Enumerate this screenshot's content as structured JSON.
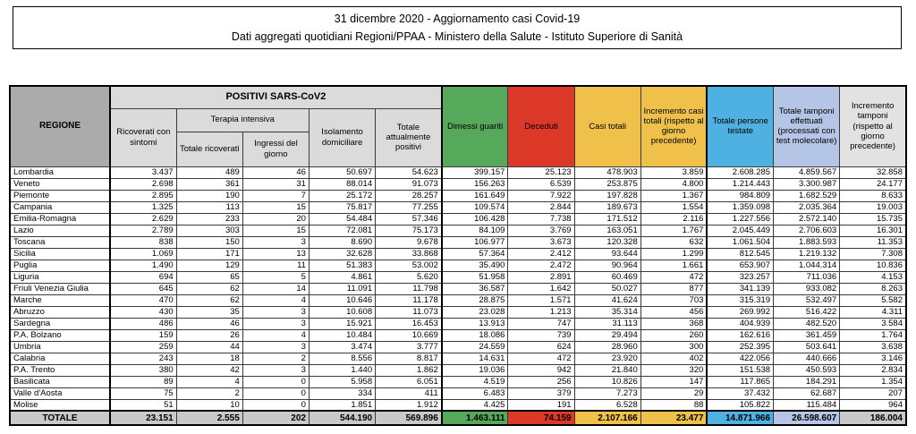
{
  "header": {
    "title": "31 dicembre 2020 - Aggiornamento casi Covid-19",
    "subtitle": "Dati aggregati quotidiani Regioni/PPAA - Ministero della Salute - Istituto Superiore di Sanità"
  },
  "colors": {
    "green": "#56A85A",
    "red": "#DC3828",
    "yellow": "#EFC14B",
    "blue": "#4FB0E2",
    "periwinkle": "#B5C5E6",
    "header_gray": "#DBDBDB",
    "regione_gray": "#ABABAB",
    "total_gray": "#C9C9C9",
    "incremento_gray": "#E2E2E2"
  },
  "table": {
    "region_header": "REGIONE",
    "group_positivi": "POSITIVI SARS-CoV2",
    "group_terapia": "Terapia intensiva",
    "columns": [
      "Ricoverati con sintomi",
      "Totale ricoverati",
      "Ingressi del giorno",
      "Isolamento domiciliare",
      "Totale attualmente positivi",
      "Dimessi guariti",
      "Deceduti",
      "Casi totali",
      "Incremento casi totali (rispetto al giorno precedente)",
      "Totale persone testate",
      "Totale tamponi effettuati (processati con test molecolare)",
      "Incremento tamponi (rispetto al giorno precedente)"
    ],
    "rows": [
      {
        "region": "Lombardia",
        "values": [
          "3.437",
          "489",
          "46",
          "50.697",
          "54.623",
          "399.157",
          "25.123",
          "478.903",
          "3.859",
          "2.608.285",
          "4.859.567",
          "32.858"
        ]
      },
      {
        "region": "Veneto",
        "values": [
          "2.698",
          "361",
          "31",
          "88.014",
          "91.073",
          "156.263",
          "6.539",
          "253.875",
          "4.800",
          "1.214.443",
          "3.300.987",
          "24.177"
        ]
      },
      {
        "region": "Piemonte",
        "values": [
          "2.895",
          "190",
          "7",
          "25.172",
          "28.257",
          "161.649",
          "7.922",
          "197.828",
          "1.367",
          "984.809",
          "1.682.529",
          "8.633"
        ]
      },
      {
        "region": "Campania",
        "values": [
          "1.325",
          "113",
          "15",
          "75.817",
          "77.255",
          "109.574",
          "2.844",
          "189.673",
          "1.554",
          "1.359.098",
          "2.035.364",
          "19.003"
        ]
      },
      {
        "region": "Emilia-Romagna",
        "values": [
          "2.629",
          "233",
          "20",
          "54.484",
          "57.346",
          "106.428",
          "7.738",
          "171.512",
          "2.116",
          "1.227.556",
          "2.572.140",
          "15.735"
        ]
      },
      {
        "region": "Lazio",
        "values": [
          "2.789",
          "303",
          "15",
          "72.081",
          "75.173",
          "84.109",
          "3.769",
          "163.051",
          "1.767",
          "2.045.449",
          "2.706.603",
          "16.301"
        ]
      },
      {
        "region": "Toscana",
        "values": [
          "838",
          "150",
          "3",
          "8.690",
          "9.678",
          "106.977",
          "3.673",
          "120.328",
          "632",
          "1.061.504",
          "1.883.593",
          "11.353"
        ]
      },
      {
        "region": "Sicilia",
        "values": [
          "1.069",
          "171",
          "13",
          "32.628",
          "33.868",
          "57.364",
          "2.412",
          "93.644",
          "1.299",
          "812.545",
          "1.219.132",
          "7.308"
        ]
      },
      {
        "region": "Puglia",
        "values": [
          "1.490",
          "129",
          "11",
          "51.383",
          "53.002",
          "35.490",
          "2.472",
          "90.964",
          "1.661",
          "653.907",
          "1.044.314",
          "10.836"
        ]
      },
      {
        "region": "Liguria",
        "values": [
          "694",
          "65",
          "5",
          "4.861",
          "5.620",
          "51.958",
          "2.891",
          "60.469",
          "472",
          "323.257",
          "711.036",
          "4.153"
        ]
      },
      {
        "region": "Friuli Venezia Giulia",
        "values": [
          "645",
          "62",
          "14",
          "11.091",
          "11.798",
          "36.587",
          "1.642",
          "50.027",
          "877",
          "341.139",
          "933.082",
          "8.263"
        ]
      },
      {
        "region": "Marche",
        "values": [
          "470",
          "62",
          "4",
          "10.646",
          "11.178",
          "28.875",
          "1.571",
          "41.624",
          "703",
          "315.319",
          "532.497",
          "5.582"
        ]
      },
      {
        "region": "Abruzzo",
        "values": [
          "430",
          "35",
          "3",
          "10.608",
          "11.073",
          "23.028",
          "1.213",
          "35.314",
          "456",
          "269.992",
          "516.422",
          "4.311"
        ]
      },
      {
        "region": "Sardegna",
        "values": [
          "486",
          "46",
          "3",
          "15.921",
          "16.453",
          "13.913",
          "747",
          "31.113",
          "368",
          "404.939",
          "482.520",
          "3.584"
        ]
      },
      {
        "region": "P.A. Bolzano",
        "values": [
          "159",
          "26",
          "4",
          "10.484",
          "10.669",
          "18.086",
          "739",
          "29.494",
          "260",
          "162.616",
          "361.459",
          "1.764"
        ]
      },
      {
        "region": "Umbria",
        "values": [
          "259",
          "44",
          "3",
          "3.474",
          "3.777",
          "24.559",
          "624",
          "28.960",
          "300",
          "252.395",
          "503.641",
          "3.638"
        ]
      },
      {
        "region": "Calabria",
        "values": [
          "243",
          "18",
          "2",
          "8.556",
          "8.817",
          "14.631",
          "472",
          "23.920",
          "402",
          "422.056",
          "440.666",
          "3.146"
        ]
      },
      {
        "region": "P.A. Trento",
        "values": [
          "380",
          "42",
          "3",
          "1.440",
          "1.862",
          "19.036",
          "942",
          "21.840",
          "320",
          "151.538",
          "450.593",
          "2.834"
        ]
      },
      {
        "region": "Basilicata",
        "values": [
          "89",
          "4",
          "0",
          "5.958",
          "6.051",
          "4.519",
          "256",
          "10.826",
          "147",
          "117.865",
          "184.291",
          "1.354"
        ]
      },
      {
        "region": "Valle d'Aosta",
        "values": [
          "75",
          "2",
          "0",
          "334",
          "411",
          "6.483",
          "379",
          "7.273",
          "29",
          "37.432",
          "62.687",
          "207"
        ]
      },
      {
        "region": "Molise",
        "values": [
          "51",
          "10",
          "0",
          "1.851",
          "1.912",
          "4.425",
          "191",
          "6.528",
          "88",
          "105.822",
          "115.484",
          "964"
        ]
      }
    ],
    "total_row": {
      "label": "TOTALE",
      "values": [
        "23.151",
        "2.555",
        "202",
        "544.190",
        "569.896",
        "1.463.111",
        "74.159",
        "2.107.166",
        "23.477",
        "14.871.966",
        "26.598.607",
        "186.004"
      ]
    }
  },
  "chart_data": {
    "type": "table",
    "title": "31 dicembre 2020 - Aggiornamento casi Covid-19",
    "columns": [
      "REGIONE",
      "Ricoverati con sintomi",
      "Totale ricoverati (terapia intensiva)",
      "Ingressi del giorno (terapia intensiva)",
      "Isolamento domiciliare",
      "Totale attualmente positivi",
      "Dimessi guariti",
      "Deceduti",
      "Casi totali",
      "Incremento casi totali",
      "Totale persone testate",
      "Totale tamponi effettuati",
      "Incremento tamponi"
    ],
    "rows": [
      [
        "Lombardia",
        3437,
        489,
        46,
        50697,
        54623,
        399157,
        25123,
        478903,
        3859,
        2608285,
        4859567,
        32858
      ],
      [
        "Veneto",
        2698,
        361,
        31,
        88014,
        91073,
        156263,
        6539,
        253875,
        4800,
        1214443,
        3300987,
        24177
      ],
      [
        "Piemonte",
        2895,
        190,
        7,
        25172,
        28257,
        161649,
        7922,
        197828,
        1367,
        984809,
        1682529,
        8633
      ],
      [
        "Campania",
        1325,
        113,
        15,
        75817,
        77255,
        109574,
        2844,
        189673,
        1554,
        1359098,
        2035364,
        19003
      ],
      [
        "Emilia-Romagna",
        2629,
        233,
        20,
        54484,
        57346,
        106428,
        7738,
        171512,
        2116,
        1227556,
        2572140,
        15735
      ],
      [
        "Lazio",
        2789,
        303,
        15,
        72081,
        75173,
        84109,
        3769,
        163051,
        1767,
        2045449,
        2706603,
        16301
      ],
      [
        "Toscana",
        838,
        150,
        3,
        8690,
        9678,
        106977,
        3673,
        120328,
        632,
        1061504,
        1883593,
        11353
      ],
      [
        "Sicilia",
        1069,
        171,
        13,
        32628,
        33868,
        57364,
        2412,
        93644,
        1299,
        812545,
        1219132,
        7308
      ],
      [
        "Puglia",
        1490,
        129,
        11,
        51383,
        53002,
        35490,
        2472,
        90964,
        1661,
        653907,
        1044314,
        10836
      ],
      [
        "Liguria",
        694,
        65,
        5,
        4861,
        5620,
        51958,
        2891,
        60469,
        472,
        323257,
        711036,
        4153
      ],
      [
        "Friuli Venezia Giulia",
        645,
        62,
        14,
        11091,
        11798,
        36587,
        1642,
        50027,
        877,
        341139,
        933082,
        8263
      ],
      [
        "Marche",
        470,
        62,
        4,
        10646,
        11178,
        28875,
        1571,
        41624,
        703,
        315319,
        532497,
        5582
      ],
      [
        "Abruzzo",
        430,
        35,
        3,
        10608,
        11073,
        23028,
        1213,
        35314,
        456,
        269992,
        516422,
        4311
      ],
      [
        "Sardegna",
        486,
        46,
        3,
        15921,
        16453,
        13913,
        747,
        31113,
        368,
        404939,
        482520,
        3584
      ],
      [
        "P.A. Bolzano",
        159,
        26,
        4,
        10484,
        10669,
        18086,
        739,
        29494,
        260,
        162616,
        361459,
        1764
      ],
      [
        "Umbria",
        259,
        44,
        3,
        3474,
        3777,
        24559,
        624,
        28960,
        300,
        252395,
        503641,
        3638
      ],
      [
        "Calabria",
        243,
        18,
        2,
        8556,
        8817,
        14631,
        472,
        23920,
        402,
        422056,
        440666,
        3146
      ],
      [
        "P.A. Trento",
        380,
        42,
        3,
        1440,
        1862,
        19036,
        942,
        21840,
        320,
        151538,
        450593,
        2834
      ],
      [
        "Basilicata",
        89,
        4,
        0,
        5958,
        6051,
        4519,
        256,
        10826,
        147,
        117865,
        184291,
        1354
      ],
      [
        "Valle d'Aosta",
        75,
        2,
        0,
        334,
        411,
        6483,
        379,
        7273,
        29,
        37432,
        62687,
        207
      ],
      [
        "Molise",
        51,
        10,
        0,
        1851,
        1912,
        4425,
        191,
        6528,
        88,
        105822,
        115484,
        964
      ],
      [
        "TOTALE",
        23151,
        2555,
        202,
        544190,
        569896,
        1463111,
        74159,
        2107166,
        23477,
        14871966,
        26598607,
        186004
      ]
    ]
  }
}
